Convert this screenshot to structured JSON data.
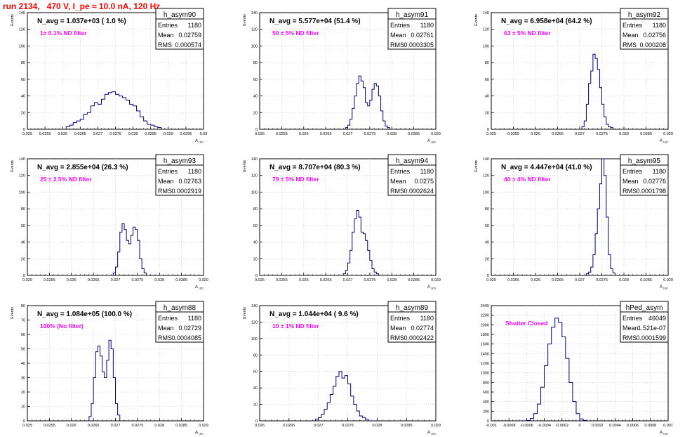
{
  "page": {
    "run_title": "run 2134,   470 V, I_pe ≈ 10.0 nA, 120 Hz"
  },
  "colors": {
    "histogram_line": "#000080",
    "filter_label": "#ff00ff",
    "run_title": "#ff0000",
    "frame": "#000000",
    "grid": "#c8c8c8"
  },
  "chart_data": [
    {
      "type": "bar",
      "name": "h_asym90",
      "xlabel": "A_{LED}",
      "ylabel": "Events",
      "xlim": [
        0.025,
        0.03
      ],
      "ylim": [
        0,
        140
      ],
      "xticks": [
        "0.025",
        "0.0255",
        "0.026",
        "0.0265",
        "0.027",
        "0.0275",
        "0.028",
        "0.0285",
        "0.029",
        "0.0295",
        "0.03"
      ],
      "yticks": [
        "0",
        "20",
        "40",
        "60",
        "80",
        "100",
        "120",
        "140"
      ],
      "yticks_values": [
        0,
        20,
        40,
        60,
        80,
        100,
        120,
        140
      ],
      "grid": true,
      "annotation": "N_avg = 1.037e+03 ( 1.0 %)",
      "filter_label": "1± 0.1% ND filter",
      "stats": {
        "name": "h_asym90",
        "entries": "1180",
        "mean": "0.02759",
        "rms": "0.000574"
      },
      "bin_start": 0.0261,
      "bin_width": 0.0001,
      "values": [
        3,
        5,
        8,
        10,
        12,
        18,
        20,
        28,
        32,
        30,
        36,
        42,
        44,
        45,
        42,
        40,
        38,
        35,
        30,
        28,
        22,
        15,
        10,
        6,
        5,
        3,
        2
      ]
    },
    {
      "type": "bar",
      "name": "h_asym91",
      "xlabel": "A_{LED}",
      "ylabel": "Events",
      "xlim": [
        0.025,
        0.029
      ],
      "ylim": [
        0,
        140
      ],
      "xticks": [
        "0.025",
        "0.0255",
        "0.026",
        "0.0265",
        "0.027",
        "0.0275",
        "0.028",
        "0.0285",
        "0.029"
      ],
      "yticks": [
        "0",
        "20",
        "40",
        "60",
        "80",
        "100",
        "120",
        "140"
      ],
      "yticks_values": [
        0,
        20,
        40,
        60,
        80,
        100,
        120,
        140
      ],
      "grid": true,
      "annotation": "N_avg = 5.577e+04 (51.4 %)",
      "filter_label": "50 ± 5% ND filter",
      "stats": {
        "name": "h_asym91",
        "entries": "1180",
        "mean": "0.02761",
        "rms": "0.0003305"
      },
      "bin_start": 0.02695,
      "bin_width": 5e-05,
      "values": [
        2,
        5,
        12,
        25,
        40,
        55,
        64,
        58,
        50,
        32,
        28,
        35,
        48,
        55,
        52,
        40,
        22,
        10,
        4,
        2
      ]
    },
    {
      "type": "bar",
      "name": "h_asym92",
      "xlabel": "A_{LED}",
      "ylabel": "Events",
      "xlim": [
        0.025,
        0.029
      ],
      "ylim": [
        0,
        140
      ],
      "xticks": [
        "0.025",
        "0.0255",
        "0.026",
        "0.0265",
        "0.027",
        "0.0275",
        "0.028",
        "0.0285",
        "0.029"
      ],
      "yticks": [
        "0",
        "20",
        "40",
        "60",
        "80",
        "100",
        "120",
        "140"
      ],
      "yticks_values": [
        0,
        20,
        40,
        60,
        80,
        100,
        120,
        140
      ],
      "grid": true,
      "annotation": "N_avg = 6.958e+04 (64.2 %)",
      "filter_label": "63 ± 5% ND filter",
      "stats": {
        "name": "h_asym92",
        "entries": "1180",
        "mean": "0.02756",
        "rms": "0.000208"
      },
      "bin_start": 0.02705,
      "bin_width": 5e-05,
      "values": [
        3,
        10,
        30,
        55,
        70,
        90,
        85,
        72,
        50,
        30,
        15,
        6,
        3,
        2
      ]
    },
    {
      "type": "bar",
      "name": "h_asym93",
      "xlabel": "A_{LED}",
      "ylabel": "Events",
      "xlim": [
        0.025,
        0.029
      ],
      "ylim": [
        0,
        140
      ],
      "xticks": [
        "0.025",
        "0.0255",
        "0.026",
        "0.0265",
        "0.027",
        "0.0275",
        "0.028",
        "0.0285",
        "0.029"
      ],
      "yticks": [
        "0",
        "20",
        "40",
        "60",
        "80",
        "100",
        "120",
        "140"
      ],
      "yticks_values": [
        0,
        20,
        40,
        60,
        80,
        100,
        120,
        140
      ],
      "grid": true,
      "annotation": "N_avg = 2.855e+04 (26.3 %)",
      "filter_label": "25 ± 2.5% ND filter",
      "stats": {
        "name": "h_asym93",
        "entries": "1180",
        "mean": "0.02763",
        "rms": "0.0002919"
      },
      "bin_start": 0.02695,
      "bin_width": 5e-05,
      "values": [
        3,
        10,
        28,
        52,
        62,
        55,
        42,
        38,
        48,
        58,
        55,
        42,
        20,
        8,
        3
      ]
    },
    {
      "type": "bar",
      "name": "h_asym94",
      "xlabel": "A_{LED}",
      "ylabel": "Events",
      "xlim": [
        0.025,
        0.029
      ],
      "ylim": [
        0,
        140
      ],
      "xticks": [
        "0.025",
        "0.0255",
        "0.026",
        "0.0265",
        "0.027",
        "0.0275",
        "0.028",
        "0.0285",
        "0.029"
      ],
      "yticks": [
        "0",
        "20",
        "40",
        "60",
        "80",
        "100",
        "120",
        "140"
      ],
      "yticks_values": [
        0,
        20,
        40,
        60,
        80,
        100,
        120,
        140
      ],
      "grid": true,
      "annotation": "N_avg = 8.707e+04 (80.3 %)",
      "filter_label": "79 ± 5% ND filter",
      "stats": {
        "name": "h_asym94",
        "entries": "1180",
        "mean": "0.0275",
        "rms": "0.0002624"
      },
      "bin_start": 0.0269,
      "bin_width": 5e-05,
      "values": [
        2,
        6,
        15,
        30,
        52,
        68,
        78,
        70,
        52,
        50,
        42,
        30,
        18,
        8,
        4,
        2
      ]
    },
    {
      "type": "bar",
      "name": "h_asym95",
      "xlabel": "A_{LED}",
      "ylabel": "Events",
      "xlim": [
        0.025,
        0.029
      ],
      "ylim": [
        0,
        140
      ],
      "xticks": [
        "0.025",
        "0.0255",
        "0.026",
        "0.0265",
        "0.027",
        "0.0275",
        "0.028",
        "0.0285",
        "0.029"
      ],
      "yticks": [
        "0",
        "20",
        "40",
        "60",
        "80",
        "100",
        "120",
        "140"
      ],
      "yticks_values": [
        0,
        20,
        40,
        60,
        80,
        100,
        120,
        140
      ],
      "grid": true,
      "annotation": "N_avg = 4.447e+04 (41.0 %)",
      "filter_label": "40 ± 4% ND filter",
      "stats": {
        "name": "h_asym95",
        "entries": "1180",
        "mean": "0.02776",
        "rms": "0.0001798"
      },
      "bin_start": 0.02715,
      "bin_width": 5e-05,
      "values": [
        2,
        4,
        10,
        25,
        50,
        80,
        110,
        140,
        120,
        70,
        25,
        8,
        3
      ]
    },
    {
      "type": "bar",
      "name": "h_asym88",
      "xlabel": "A_{LED}",
      "ylabel": "Events",
      "xlim": [
        0.025,
        0.029
      ],
      "ylim": [
        0,
        80
      ],
      "xticks": [
        "0.025",
        "0.0255",
        "0.026",
        "0.0265",
        "0.027",
        "0.0275",
        "0.028",
        "0.0285",
        "0.029"
      ],
      "yticks": [
        "0",
        "10",
        "20",
        "30",
        "40",
        "50",
        "60",
        "70",
        "80"
      ],
      "yticks_values": [
        0,
        10,
        20,
        30,
        40,
        50,
        60,
        70,
        80
      ],
      "grid": true,
      "annotation": "N_avg = 1.084e+05 (100.0 %)",
      "filter_label": "100% (No filter)",
      "stats": {
        "name": "h_asym88",
        "entries": "1180",
        "mean": "0.02729",
        "rms": "0.0004085"
      },
      "bin_start": 0.0264,
      "bin_width": 5e-05,
      "values": [
        3,
        12,
        30,
        48,
        52,
        45,
        34,
        30,
        42,
        56,
        50,
        30,
        12,
        4
      ]
    },
    {
      "type": "bar",
      "name": "h_asym89",
      "xlabel": "A_{LED}",
      "ylabel": "Events",
      "xlim": [
        0.026,
        0.029
      ],
      "ylim": [
        0,
        140
      ],
      "xticks": [
        "0.026",
        "0.0265",
        "0.027",
        "0.0275",
        "0.028",
        "0.0285",
        "0.029"
      ],
      "yticks": [
        "0",
        "20",
        "40",
        "60",
        "80",
        "100",
        "120",
        "140"
      ],
      "yticks_values": [
        0,
        20,
        40,
        60,
        80,
        100,
        120,
        140
      ],
      "grid": true,
      "annotation": "N_avg = 1.044e+04 ( 9.6 %)",
      "filter_label": "10 ± 1% ND filter",
      "stats": {
        "name": "h_asym89",
        "entries": "1180",
        "mean": "0.02774",
        "rms": "0.0002422"
      },
      "bin_start": 0.02695,
      "bin_width": 5e-05,
      "values": [
        2,
        4,
        8,
        14,
        22,
        32,
        42,
        54,
        60,
        52,
        55,
        45,
        30,
        20,
        12,
        6,
        4,
        2
      ]
    },
    {
      "type": "bar",
      "name": "hPed_asym",
      "xlabel": "A_{LED}",
      "ylabel": "",
      "xlim": [
        -0.001,
        0.001
      ],
      "ylim": [
        0,
        2400
      ],
      "xticks": [
        "-0.001",
        "-0.0008",
        "-0.0006",
        "-0.0004",
        "-0.0002",
        "0",
        "0.0002",
        "0.0004",
        "0.0006",
        "0.0008",
        "0.001"
      ],
      "yticks": [
        "0",
        "200",
        "400",
        "600",
        "800",
        "1000",
        "1200",
        "1400",
        "1600",
        "1800",
        "2000",
        "2200",
        "2400"
      ],
      "yticks_values": [
        0,
        200,
        400,
        600,
        800,
        1000,
        1200,
        1400,
        1600,
        1800,
        2000,
        2200,
        2400
      ],
      "grid": true,
      "annotation": "",
      "filter_label": "Shutter Closed",
      "stats": {
        "name": "hPed_asym",
        "entries": "46049",
        "mean": "1.521e-07",
        "rms": "0.0001599"
      },
      "bin_start": -0.0006,
      "bin_width": 4e-05,
      "values": [
        10,
        50,
        150,
        350,
        700,
        1150,
        1600,
        1950,
        2140,
        2050,
        1750,
        1300,
        800,
        400,
        150,
        40,
        10
      ]
    }
  ]
}
